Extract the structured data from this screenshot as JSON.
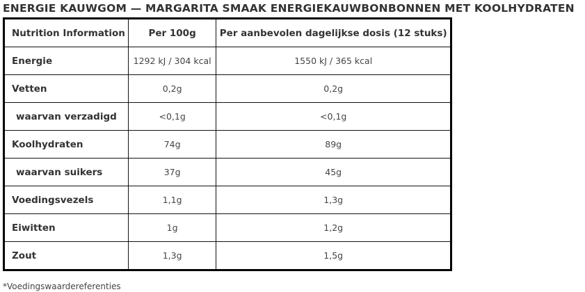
{
  "title": "ENERGIE KAUWGOM — MARGARITA SMAAK ENERGIEKAUWBONBONNEN MET KOOLHYDRATEN",
  "table": {
    "headers": [
      "Nutrition Information",
      "Per 100g",
      "Per aanbevolen dagelijkse dosis (12 stuks)"
    ],
    "rows": [
      {
        "label": "Energie",
        "sub": false,
        "per100": "1292 kJ / 304 kcal",
        "perDose": "1550 kJ / 365 kcal"
      },
      {
        "label": "Vetten",
        "sub": false,
        "per100": "0,2g",
        "perDose": "0,2g"
      },
      {
        "label": "waarvan verzadigd",
        "sub": true,
        "per100": "<0,1g",
        "perDose": "<0,1g"
      },
      {
        "label": "Koolhydraten",
        "sub": false,
        "per100": "74g",
        "perDose": "89g"
      },
      {
        "label": "waarvan suikers",
        "sub": true,
        "per100": "37g",
        "perDose": "45g"
      },
      {
        "label": "Voedingsvezels",
        "sub": false,
        "per100": "1,1g",
        "perDose": "1,3g"
      },
      {
        "label": "Eiwitten",
        "sub": false,
        "per100": "1g",
        "perDose": "1,2g"
      },
      {
        "label": "Zout",
        "sub": false,
        "per100": "1,3g",
        "perDose": "1,5g"
      }
    ]
  },
  "footnote": "*Voedingswaardereferenties"
}
